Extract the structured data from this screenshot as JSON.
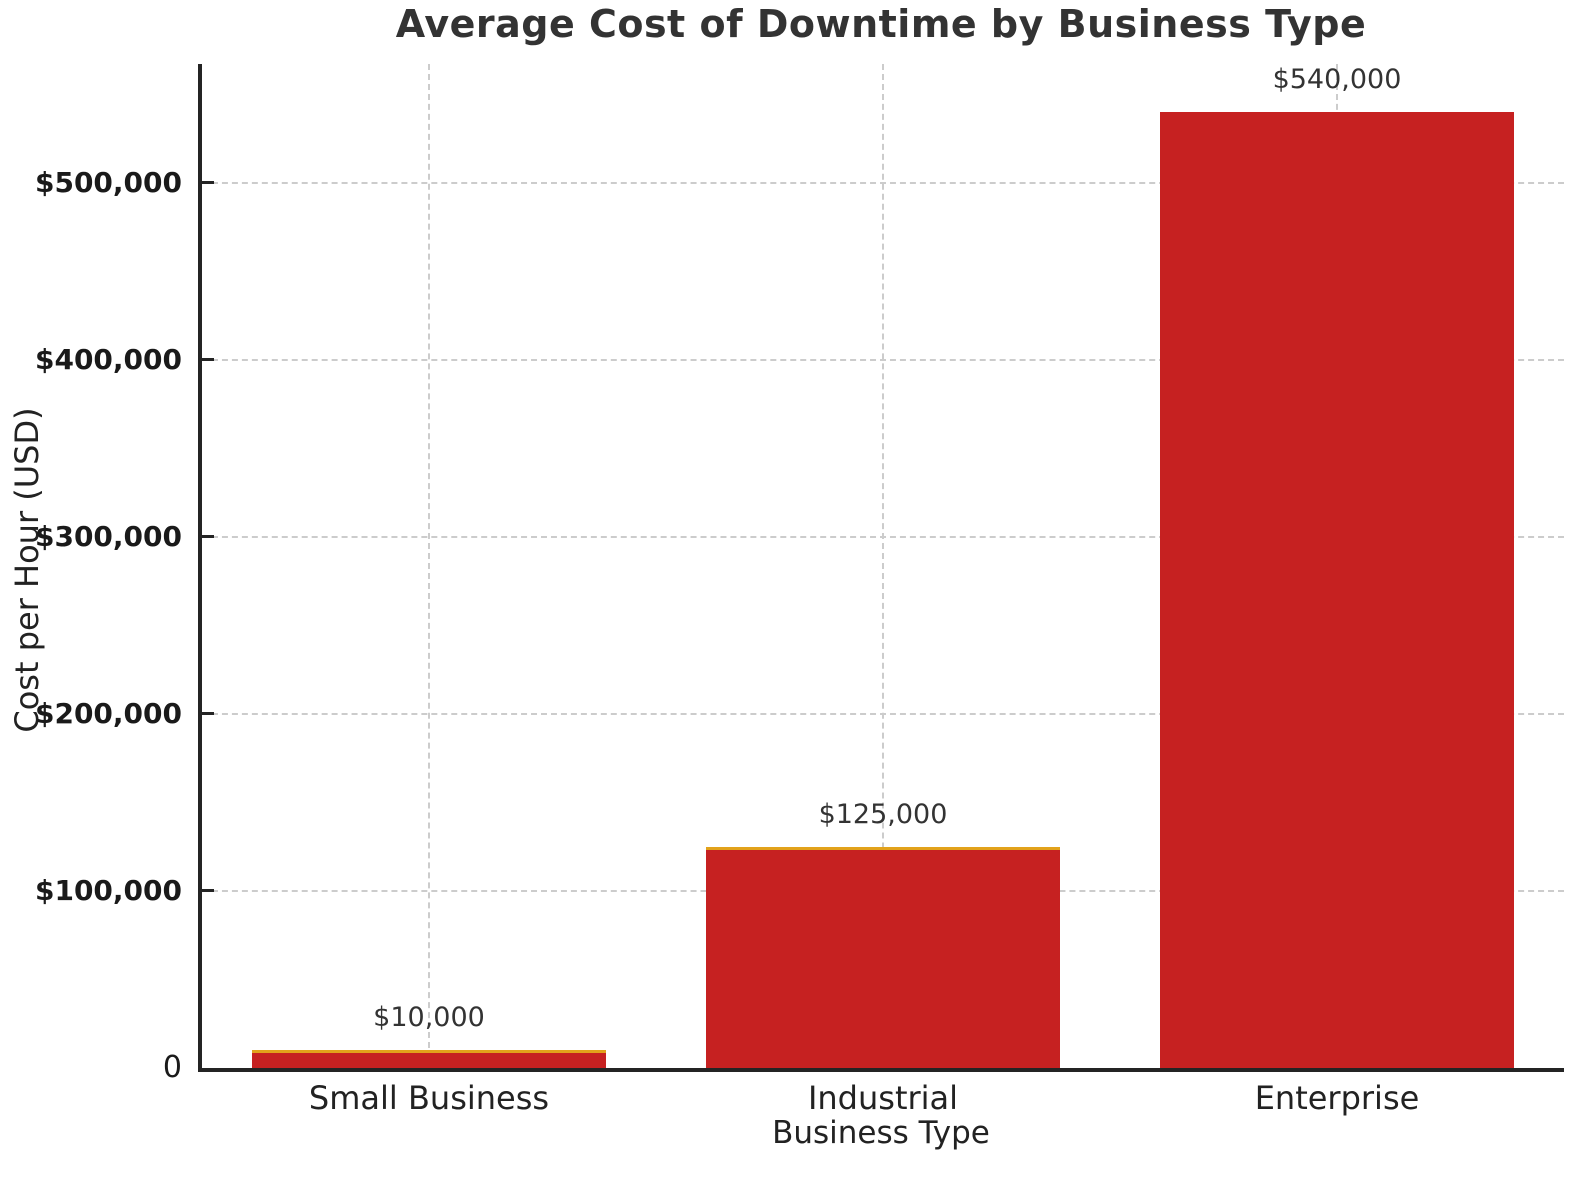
{
  "chart_data": {
    "type": "bar",
    "title": "Average Cost of Downtime by Business Type",
    "xlabel": "Business Type",
    "ylabel": "Cost per Hour (USD)",
    "categories": [
      "Small Business",
      "Industrial",
      "Enterprise"
    ],
    "values": [
      10000,
      125000,
      540000
    ],
    "value_labels": [
      "$10,000",
      "$125,000",
      "$540,000"
    ],
    "ylim": [
      0,
      567000
    ],
    "yticks": [
      {
        "value": 0,
        "label": "0",
        "bold": false
      },
      {
        "value": 100000,
        "label": "$100,000",
        "bold": true
      },
      {
        "value": 200000,
        "label": "$200,000",
        "bold": true
      },
      {
        "value": 300000,
        "label": "$300,000",
        "bold": true
      },
      {
        "value": 400000,
        "label": "$400,000",
        "bold": true
      },
      {
        "value": 500000,
        "label": "$500,000",
        "bold": true
      }
    ],
    "grid": {
      "show": true,
      "style": "dashed",
      "color": "#cccccc",
      "horizontal": true,
      "vertical": true
    },
    "legend_position": "none",
    "colors": {
      "bar_fill": "#C62121",
      "bar_top_edge": "#E2A21B",
      "spine": "#242424",
      "grid": "#cccccc",
      "title_text": "#333333",
      "label_text": "#222222"
    },
    "bar_top_edge_flags": [
      true,
      true,
      false
    ]
  }
}
